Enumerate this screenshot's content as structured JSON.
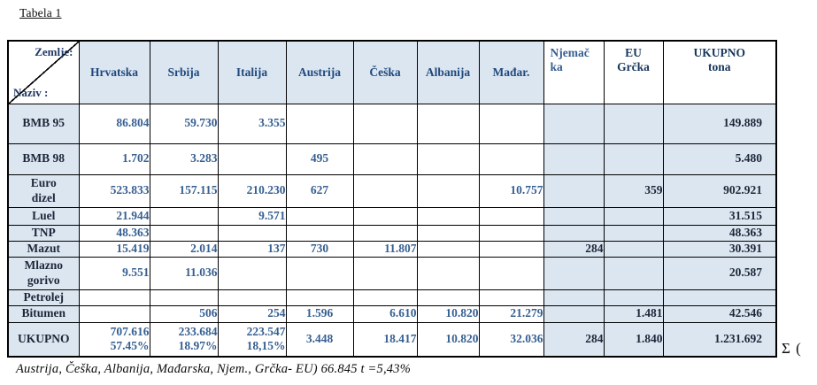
{
  "caption": "Tabela 1",
  "footnote": "Austrija, Češka, Albanija,  Mađarska, Njem.,   Grčka- EU) 66.845  t =5,43%",
  "sigma": "Σ (",
  "colors": {
    "cell_shade": "#dce6f1",
    "data_blue": "#365f91",
    "header_blue": "#1f497d",
    "dark_navy": "#17365d",
    "border": "#000000"
  },
  "table": {
    "corner": {
      "zemlje": "Zemlje:",
      "naziv": "Naziv :"
    },
    "columns": [
      "Hrvatska",
      "Srbija",
      "Italija",
      "Austrija",
      "Češka",
      "Albanija",
      "Mađar.",
      "Njemač\nka",
      "EU\nGrčka",
      "UKUPNO\ntona"
    ],
    "rows": [
      {
        "label": "BMB 95",
        "cells": [
          "86.804",
          "59.730",
          "3.355",
          "",
          "",
          "",
          "",
          "",
          "",
          "149.889"
        ]
      },
      {
        "label": "BMB 98",
        "cells": [
          "1.702",
          "3.283",
          "",
          "495",
          "",
          "",
          "",
          "",
          "",
          "5.480"
        ]
      },
      {
        "label": "Euro\ndizel",
        "cells": [
          "523.833",
          "157.115",
          "210.230",
          "627",
          "",
          "",
          "10.757",
          "",
          "359",
          "902.921"
        ]
      },
      {
        "label": "Luel",
        "cells": [
          "21.944",
          "",
          "9.571",
          "",
          "",
          "",
          "",
          "",
          "",
          "31.515"
        ]
      },
      {
        "label": "TNP",
        "cells": [
          "48.363",
          "",
          "",
          "",
          "",
          "",
          "",
          "",
          "",
          "48.363"
        ]
      },
      {
        "label": "Mazut",
        "cells": [
          "15.419",
          "2.014",
          "137",
          "730",
          "11.807",
          "",
          "",
          "284",
          "",
          "30.391"
        ]
      },
      {
        "label": "Mlazno\ngorivo",
        "cells": [
          "9.551",
          "11.036",
          "",
          "",
          "",
          "",
          "",
          "",
          "",
          "20.587"
        ]
      },
      {
        "label": "Petrolej",
        "cells": [
          "",
          "",
          "",
          "",
          "",
          "",
          "",
          "",
          "",
          ""
        ]
      },
      {
        "label": "Bitumen",
        "cells": [
          "",
          "506",
          "254",
          "1.596",
          "6.610",
          "10.820",
          "21.279",
          "",
          "1.481",
          "42.546"
        ]
      },
      {
        "label": "UKUPNO",
        "cells": [
          "707.616\n57.45%",
          "233.684\n18.97%",
          "223.547\n18,15%",
          "3.448",
          "18.417",
          "10.820",
          "32.036",
          "284",
          "1.840",
          "1.231.692"
        ]
      }
    ]
  }
}
